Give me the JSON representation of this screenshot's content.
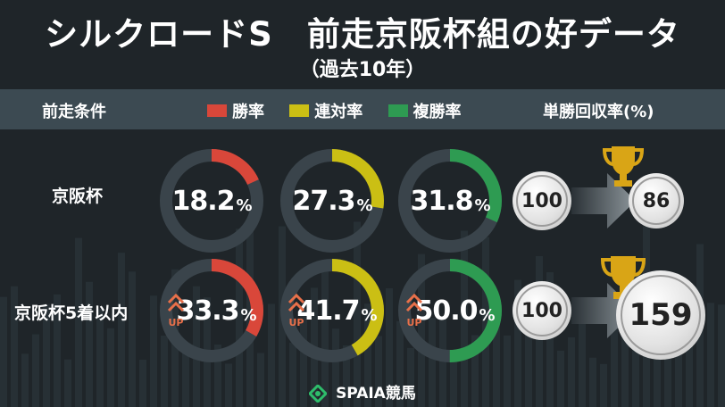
{
  "title": "シルクロードS　前走京阪杯組の好データ",
  "subtitle": "（過去10年）",
  "header": {
    "condition_label": "前走条件",
    "legend": [
      {
        "label": "勝率",
        "color": "#d9473a"
      },
      {
        "label": "連対率",
        "color": "#cbbf14"
      },
      {
        "label": "複勝率",
        "color": "#2e9b52"
      }
    ],
    "roi_label": "単勝回収率(%)"
  },
  "colors": {
    "track": "#3a444b",
    "up": "#e8704a"
  },
  "up_label": "UP",
  "pct_sign": "%",
  "rows": [
    {
      "label": "京阪杯",
      "win": {
        "value": 18.2,
        "text": "18.2"
      },
      "place2": {
        "value": 27.3,
        "text": "27.3"
      },
      "place3": {
        "value": 31.8,
        "text": "31.8"
      },
      "roi_base": "100",
      "roi": "86"
    },
    {
      "label": "京阪杯5着以内",
      "win": {
        "value": 33.3,
        "text": "33.3"
      },
      "place2": {
        "value": 41.7,
        "text": "41.7"
      },
      "place3": {
        "value": 50.0,
        "text": "50.0"
      },
      "roi_base": "100",
      "roi": "159"
    }
  ],
  "chart_data": {
    "type": "pie",
    "categories": [
      "京阪杯",
      "京阪杯5着以内"
    ],
    "series": [
      {
        "name": "勝率",
        "values": [
          18.2,
          33.3
        ]
      },
      {
        "name": "連対率",
        "values": [
          27.3,
          41.7
        ]
      },
      {
        "name": "複勝率",
        "values": [
          31.8,
          50.0
        ]
      }
    ],
    "roi": {
      "name": "単勝回収率(%)",
      "values": [
        86,
        159
      ],
      "base": 100
    }
  },
  "footer": {
    "brand": "SPAIA競馬"
  }
}
